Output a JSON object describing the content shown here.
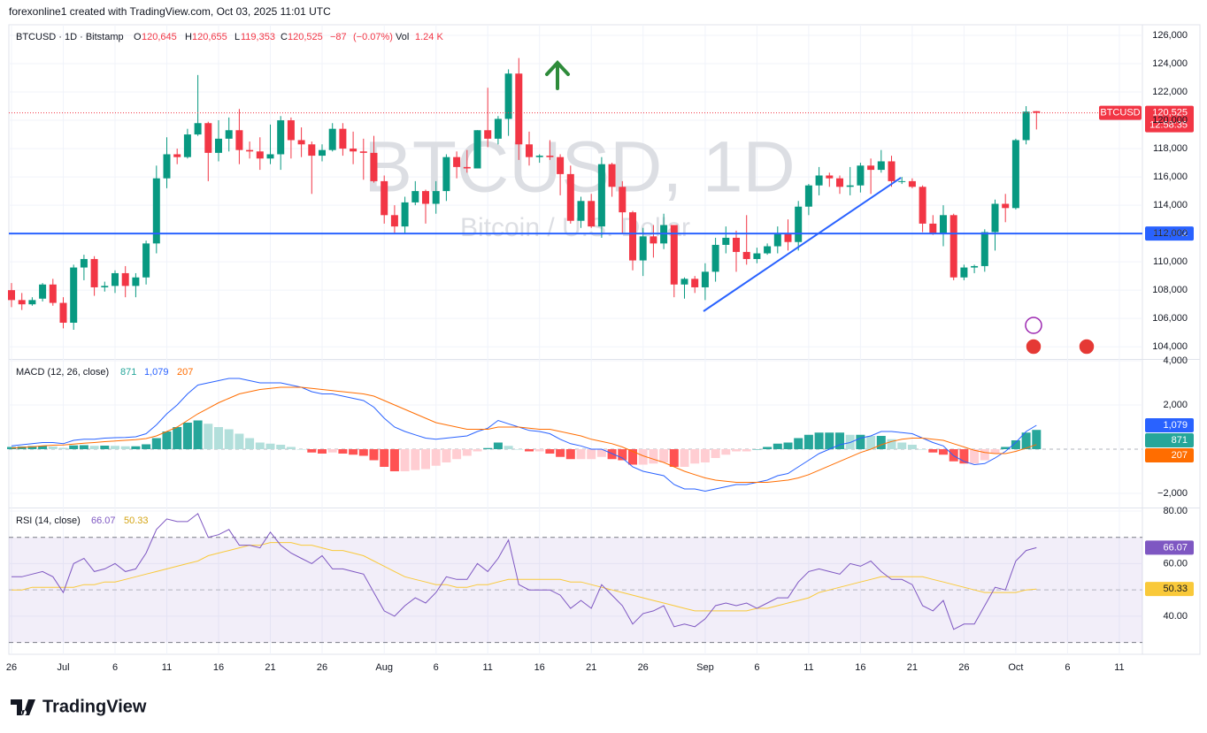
{
  "header": {
    "text": "forexonline1 created with TradingView.com, Oct 03, 2025 11:01 UTC"
  },
  "chart_data": [
    {
      "type": "candlestick",
      "legend": {
        "symbol": "BTCUSD · 1D · Bitstamp",
        "open": {
          "letter": "O",
          "value": 120645,
          "label": "120,645"
        },
        "high": {
          "letter": "H",
          "value": 120655,
          "label": "120,655"
        },
        "low": {
          "letter": "L",
          "value": 119353,
          "label": "119,353"
        },
        "close": {
          "letter": "C",
          "value": 120525,
          "label": "120,525"
        },
        "change": {
          "value": -87,
          "label": "−87"
        },
        "change_pct": {
          "value": -0.07,
          "label": "(−0.07%)"
        },
        "volume": {
          "letter": "Vol",
          "value": 1240,
          "label": "1.24 K"
        }
      },
      "watermark": {
        "title": "BTCUSD, 1D",
        "subtitle": "Bitcoin / U.S. Dollar"
      },
      "symbol_tag": "BTCUSD",
      "last_label": "120,525",
      "countdown": "12:58:35",
      "up_color": "#089981",
      "down_color": "#f23645",
      "price_line": {
        "value": 112002,
        "label": "112,002",
        "color": "#2962ff"
      },
      "categories": [
        "26",
        null,
        null,
        null,
        null,
        "Jul",
        null,
        null,
        null,
        null,
        "6",
        null,
        null,
        null,
        null,
        "11",
        null,
        null,
        null,
        null,
        "16",
        null,
        null,
        null,
        null,
        "21",
        null,
        null,
        null,
        null,
        "26",
        null,
        null,
        null,
        null,
        null,
        "Aug",
        null,
        null,
        null,
        null,
        "6",
        null,
        null,
        null,
        null,
        "11",
        null,
        null,
        null,
        null,
        "16",
        null,
        null,
        null,
        null,
        "21",
        null,
        null,
        null,
        null,
        "26",
        null,
        null,
        null,
        null,
        null,
        "Sep",
        null,
        null,
        null,
        null,
        "6",
        null,
        null,
        null,
        null,
        "11",
        null,
        null,
        null,
        null,
        "16",
        null,
        null,
        null,
        null,
        "21",
        null,
        null,
        null,
        null,
        "26",
        null,
        null,
        null,
        null,
        "Oct",
        null,
        null,
        null,
        null,
        "6",
        null,
        null,
        null,
        null,
        "11"
      ],
      "open": [
        108000,
        107300,
        107000,
        107400,
        108400,
        107100,
        105700,
        109600,
        110200,
        108200,
        108300,
        109200,
        108300,
        108900,
        111300,
        115900,
        117600,
        117400,
        119000,
        119800,
        117700,
        118700,
        119300,
        117900,
        117800,
        117300,
        117600,
        120000,
        118600,
        118300,
        117500,
        117900,
        119400,
        118000,
        117800,
        117700,
        115700,
        113300,
        112500,
        114200,
        115000,
        114100,
        115000,
        117400,
        116700,
        116600,
        119300,
        118700,
        120100,
        123300,
        118300,
        117400,
        117500,
        117400,
        116200,
        112900,
        114300,
        112500,
        116900,
        115300,
        113500,
        110100,
        111800,
        111300,
        112600,
        108400,
        108800,
        108200,
        109300,
        111200,
        111700,
        110700,
        110200,
        110600,
        111100,
        112000,
        111400,
        113900,
        115400,
        116100,
        115900,
        115300,
        115400,
        116800,
        116500,
        117100,
        115700,
        115700,
        115300,
        112700,
        112000,
        113300,
        108900,
        109600,
        109700,
        112100,
        114100,
        113800,
        118600,
        120645,
        null,
        null,
        null,
        null,
        null,
        null,
        null,
        null
      ],
      "high": [
        108500,
        107800,
        107500,
        108500,
        108800,
        107500,
        109800,
        110500,
        110400,
        108600,
        109400,
        109700,
        109200,
        111500,
        116800,
        118800,
        118000,
        119400,
        123200,
        119900,
        120000,
        120200,
        120800,
        118500,
        118800,
        119700,
        120300,
        120200,
        119500,
        118500,
        118300,
        119800,
        119800,
        119200,
        118700,
        118900,
        116100,
        114000,
        114600,
        115700,
        115100,
        115700,
        117600,
        117800,
        117900,
        119300,
        122300,
        120300,
        123600,
        124400,
        119200,
        117600,
        118600,
        117600,
        116800,
        114600,
        114800,
        117400,
        117000,
        115700,
        113600,
        112400,
        112600,
        113400,
        112600,
        108900,
        109000,
        109900,
        111700,
        112500,
        112200,
        113300,
        111000,
        111300,
        112500,
        113000,
        114300,
        115500,
        116700,
        116300,
        116100,
        116700,
        117000,
        117300,
        117900,
        117500,
        116000,
        115900,
        115400,
        113300,
        114000,
        113400,
        109800,
        109800,
        112300,
        114400,
        114800,
        118700,
        121000,
        120655,
        null,
        null,
        null,
        null,
        null,
        null,
        null,
        null
      ],
      "low": [
        106800,
        106600,
        106900,
        107200,
        106900,
        105300,
        105200,
        108700,
        107600,
        107900,
        107800,
        107500,
        107500,
        108400,
        110600,
        115200,
        116900,
        117300,
        118900,
        115700,
        117100,
        117800,
        116900,
        117300,
        116500,
        116900,
        116500,
        117300,
        117400,
        114800,
        117100,
        117800,
        117500,
        116900,
        115800,
        115600,
        112700,
        112000,
        112000,
        114000,
        112700,
        113400,
        114300,
        115900,
        116300,
        116600,
        118100,
        118300,
        118900,
        117200,
        116800,
        117000,
        117200,
        114700,
        112700,
        112400,
        112400,
        111700,
        114600,
        112000,
        109400,
        109000,
        110300,
        110900,
        107500,
        107400,
        107800,
        107300,
        108600,
        110600,
        109300,
        109800,
        109900,
        110500,
        110600,
        110800,
        110800,
        113300,
        114700,
        115300,
        114800,
        114700,
        114900,
        114800,
        116300,
        115300,
        115500,
        115200,
        112100,
        111900,
        111100,
        108700,
        108700,
        109200,
        109300,
        110800,
        112800,
        113700,
        118300,
        119353,
        null,
        null,
        null,
        null,
        null,
        null,
        null,
        null
      ],
      "close": [
        107300,
        107000,
        107300,
        108400,
        107100,
        105700,
        109600,
        110200,
        108200,
        108300,
        109200,
        108300,
        108900,
        111300,
        115900,
        117600,
        117400,
        119000,
        119800,
        117700,
        118700,
        119300,
        117900,
        117800,
        117300,
        117600,
        120000,
        118600,
        118300,
        117500,
        117900,
        119400,
        118000,
        117800,
        117700,
        115700,
        113300,
        112500,
        114200,
        115000,
        114100,
        115000,
        117400,
        116700,
        116600,
        119300,
        118700,
        120100,
        123300,
        118300,
        117400,
        117500,
        117400,
        116200,
        112900,
        114300,
        112500,
        116900,
        115300,
        113500,
        110100,
        111800,
        111300,
        112600,
        108400,
        108800,
        108200,
        109300,
        111200,
        111700,
        110700,
        110200,
        110600,
        111100,
        112000,
        111400,
        113900,
        115400,
        116100,
        115900,
        115300,
        115400,
        116800,
        116500,
        117100,
        115700,
        115700,
        115300,
        112700,
        112000,
        113300,
        108900,
        109600,
        109700,
        112100,
        114100,
        113800,
        118600,
        120612,
        120525,
        null,
        null,
        null,
        null,
        null,
        null,
        null,
        null
      ],
      "ylim": [
        103200,
        126750
      ],
      "yticks": [
        {
          "value": 104000,
          "label": "104,000"
        },
        {
          "value": 106000,
          "label": "106,000"
        },
        {
          "value": 108000,
          "label": "108,000"
        },
        {
          "value": 110000,
          "label": "110,000"
        },
        {
          "value": 112000,
          "label": "112,000"
        },
        {
          "value": 114000,
          "label": "114,000"
        },
        {
          "value": 116000,
          "label": "116,000"
        },
        {
          "value": 118000,
          "label": "118,000"
        },
        {
          "value": 120000,
          "label": "120,000"
        },
        {
          "value": 122000,
          "label": "122,000"
        },
        {
          "value": 124000,
          "label": "124,000"
        },
        {
          "value": 126000,
          "label": "126,000"
        }
      ],
      "grid": true
    },
    {
      "type": "macd",
      "title": "MACD (12, 26, close)",
      "histogram": {
        "colors": {
          "up_strong": "#26a69a",
          "up_weak": "#b2dfdb",
          "down_strong": "#ff5252",
          "down_weak": "#ffcdd2"
        },
        "values": [
          100,
          120,
          140,
          150,
          120,
          60,
          170,
          180,
          150,
          160,
          150,
          130,
          130,
          220,
          500,
          800,
          1000,
          1200,
          1300,
          1150,
          1000,
          900,
          700,
          500,
          300,
          250,
          200,
          100,
          0,
          -150,
          -200,
          -150,
          -200,
          -250,
          -300,
          -500,
          -800,
          -1000,
          -1000,
          -950,
          -900,
          -750,
          -600,
          -450,
          -300,
          -100,
          50,
          300,
          150,
          0,
          -100,
          -100,
          -200,
          -350,
          -450,
          -450,
          -450,
          -350,
          -450,
          -500,
          -700,
          -700,
          -650,
          -600,
          -800,
          -800,
          -650,
          -600,
          -400,
          -250,
          -100,
          -100,
          0,
          100,
          250,
          300,
          500,
          650,
          750,
          750,
          750,
          650,
          650,
          600,
          600,
          450,
          300,
          200,
          0,
          -150,
          -250,
          -550,
          -650,
          -650,
          -500,
          -200,
          100,
          400,
          750,
          871
        ]
      },
      "macd": {
        "color": "#2962ff",
        "last_label": "1,079",
        "values": [
          150,
          200,
          250,
          300,
          300,
          250,
          400,
          450,
          450,
          500,
          520,
          530,
          560,
          700,
          1100,
          1600,
          2000,
          2500,
          2900,
          3000,
          3100,
          3200,
          3200,
          3100,
          3000,
          3000,
          3000,
          2900,
          2800,
          2600,
          2500,
          2500,
          2400,
          2300,
          2200,
          1900,
          1400,
          1000,
          800,
          650,
          500,
          450,
          500,
          550,
          600,
          800,
          950,
          1300,
          1150,
          1000,
          850,
          800,
          700,
          450,
          250,
          150,
          0,
          0,
          -200,
          -400,
          -800,
          -1000,
          -1100,
          -1200,
          -1600,
          -1800,
          -1800,
          -1900,
          -1800,
          -1700,
          -1600,
          -1600,
          -1500,
          -1400,
          -1200,
          -1100,
          -800,
          -500,
          -200,
          0,
          200,
          300,
          500,
          600,
          800,
          800,
          750,
          700,
          500,
          300,
          150,
          -300,
          -550,
          -700,
          -650,
          -400,
          -100,
          300,
          800,
          1079
        ]
      },
      "signal": {
        "color": "#ff6d00",
        "values": [
          50,
          80,
          110,
          150,
          180,
          190,
          230,
          270,
          300,
          340,
          370,
          400,
          430,
          480,
          600,
          800,
          1000,
          1300,
          1600,
          1850,
          2100,
          2300,
          2500,
          2600,
          2700,
          2750,
          2800,
          2800,
          2800,
          2750,
          2700,
          2650,
          2600,
          2550,
          2500,
          2400,
          2200,
          2000,
          1800,
          1600,
          1400,
          1200,
          1100,
          1000,
          900,
          900,
          900,
          1000,
          1000,
          1000,
          950,
          900,
          900,
          800,
          700,
          600,
          450,
          350,
          250,
          100,
          -100,
          -300,
          -450,
          -600,
          -800,
          -1000,
          -1150,
          -1300,
          -1400,
          -1450,
          -1500,
          -1500,
          -1500,
          -1500,
          -1450,
          -1400,
          -1300,
          -1150,
          -950,
          -750,
          -550,
          -350,
          -150,
          0,
          200,
          350,
          450,
          500,
          500,
          450,
          400,
          250,
          100,
          -50,
          -150,
          -200,
          -200,
          -100,
          50,
          207
        ]
      },
      "ylim": [
        -2600,
        4000
      ],
      "yticks": [
        {
          "value": -2000,
          "label": "−2,000"
        },
        {
          "value": 2000,
          "label": "2,000"
        },
        {
          "value": 4000,
          "label": "4,000"
        }
      ]
    },
    {
      "type": "rsi",
      "title": "RSI (14, close)",
      "rsi": {
        "color": "#7e57c2",
        "values": [
          55,
          55,
          56,
          57,
          55,
          49,
          60,
          62,
          57,
          58,
          60,
          57,
          58,
          64,
          73,
          77,
          76,
          76,
          79,
          70,
          71,
          73,
          67,
          67,
          66,
          72,
          67,
          64,
          62,
          60,
          63,
          58,
          58,
          57,
          56,
          49,
          42,
          40,
          44,
          47,
          45,
          49,
          55,
          54,
          54,
          60,
          57,
          62,
          69,
          52,
          50,
          50,
          50,
          48,
          43,
          46,
          43,
          52,
          48,
          44,
          37,
          41,
          42,
          44,
          36,
          37,
          36,
          39,
          44,
          45,
          44,
          45,
          43,
          45,
          47,
          47,
          53,
          57,
          58,
          57,
          56,
          60,
          59,
          61,
          57,
          54,
          54,
          52,
          44,
          42,
          46,
          35,
          37,
          37,
          44,
          51,
          50,
          61,
          65,
          66.07
        ]
      },
      "ma": {
        "color": "#f9c93a",
        "values": [
          50,
          50,
          51,
          51,
          51,
          51,
          51,
          52,
          52,
          53,
          53,
          54,
          55,
          56,
          57,
          58,
          59,
          60,
          61,
          63,
          64,
          65,
          66,
          67,
          67,
          68,
          68,
          68,
          67,
          67,
          66,
          65,
          65,
          64,
          63,
          61,
          59,
          57,
          55,
          54,
          53,
          52,
          52,
          51,
          51,
          52,
          52,
          53,
          54,
          54,
          54,
          54,
          54,
          54,
          53,
          53,
          52,
          51,
          50,
          49,
          48,
          47,
          46,
          45,
          44,
          43,
          42,
          42,
          42,
          42,
          42,
          42,
          43,
          43,
          44,
          45,
          46,
          47,
          49,
          50,
          51,
          52,
          53,
          54,
          55,
          55,
          55,
          55,
          55,
          54,
          53,
          52,
          51,
          50,
          49,
          49,
          49,
          49,
          50,
          50.33
        ]
      },
      "bands": [
        30,
        70
      ],
      "midline": 50,
      "band_color": "#7e57c2",
      "ylim": [
        25.5,
        81
      ],
      "yticks": [
        {
          "value": 40,
          "label": "40.00"
        },
        {
          "value": 60,
          "label": "60.00"
        },
        {
          "value": 80,
          "label": "80.00"
        }
      ]
    }
  ],
  "footer": {
    "brand": "TradingView"
  }
}
